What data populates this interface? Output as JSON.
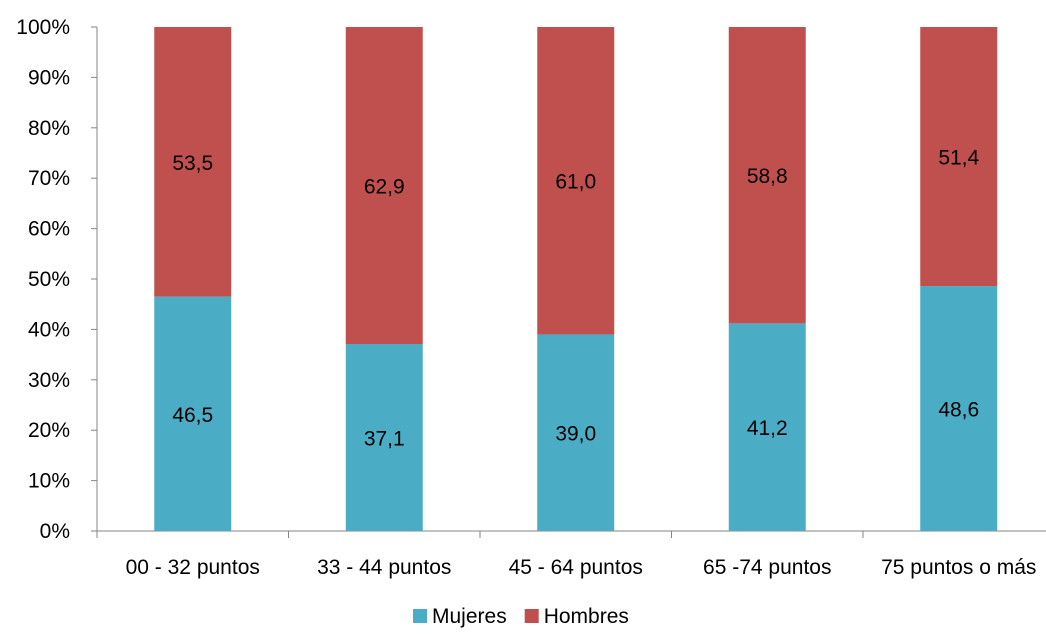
{
  "chart_data": {
    "type": "bar",
    "stacked": true,
    "percent_stacked": true,
    "categories": [
      "00 - 32 puntos",
      "33 - 44 puntos",
      "45 - 64 puntos",
      "65 -74 puntos",
      "75 puntos o más"
    ],
    "series": [
      {
        "name": "Mujeres",
        "color": "#4BACC6",
        "values": [
          46.5,
          37.1,
          39.0,
          41.2,
          48.6
        ],
        "labels": [
          "46,5",
          "37,1",
          "39,0",
          "41,2",
          "48,6"
        ]
      },
      {
        "name": "Hombres",
        "color": "#C0504D",
        "values": [
          53.5,
          62.9,
          61.0,
          58.8,
          51.4
        ],
        "labels": [
          "53,5",
          "62,9",
          "61,0",
          "58,8",
          "51,4"
        ]
      }
    ],
    "yticks": [
      "0%",
      "10%",
      "20%",
      "30%",
      "40%",
      "50%",
      "60%",
      "70%",
      "80%",
      "90%",
      "100%"
    ],
    "ylim": [
      0,
      100
    ],
    "title": "",
    "xlabel": "",
    "ylabel": "",
    "grid": false,
    "legend_position": "bottom"
  }
}
